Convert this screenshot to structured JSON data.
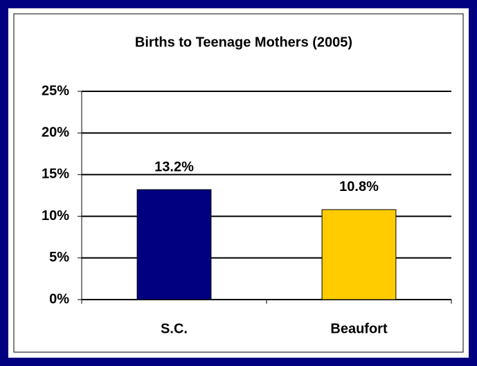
{
  "chart_data": {
    "type": "bar",
    "title": "Births to Teenage Mothers (2005)",
    "categories": [
      "S.C.",
      "Beaufort"
    ],
    "values": [
      13.2,
      10.8
    ],
    "value_labels": [
      "13.2%",
      "10.8%"
    ],
    "colors": [
      "#000080",
      "#ffcc00"
    ],
    "ylim": [
      0,
      25
    ],
    "yticks": [
      {
        "value": 0,
        "label": "0%"
      },
      {
        "value": 5,
        "label": "5%"
      },
      {
        "value": 10,
        "label": "10%"
      },
      {
        "value": 15,
        "label": "15%"
      },
      {
        "value": 20,
        "label": "20%"
      },
      {
        "value": 25,
        "label": "25%"
      }
    ],
    "grid": true
  }
}
